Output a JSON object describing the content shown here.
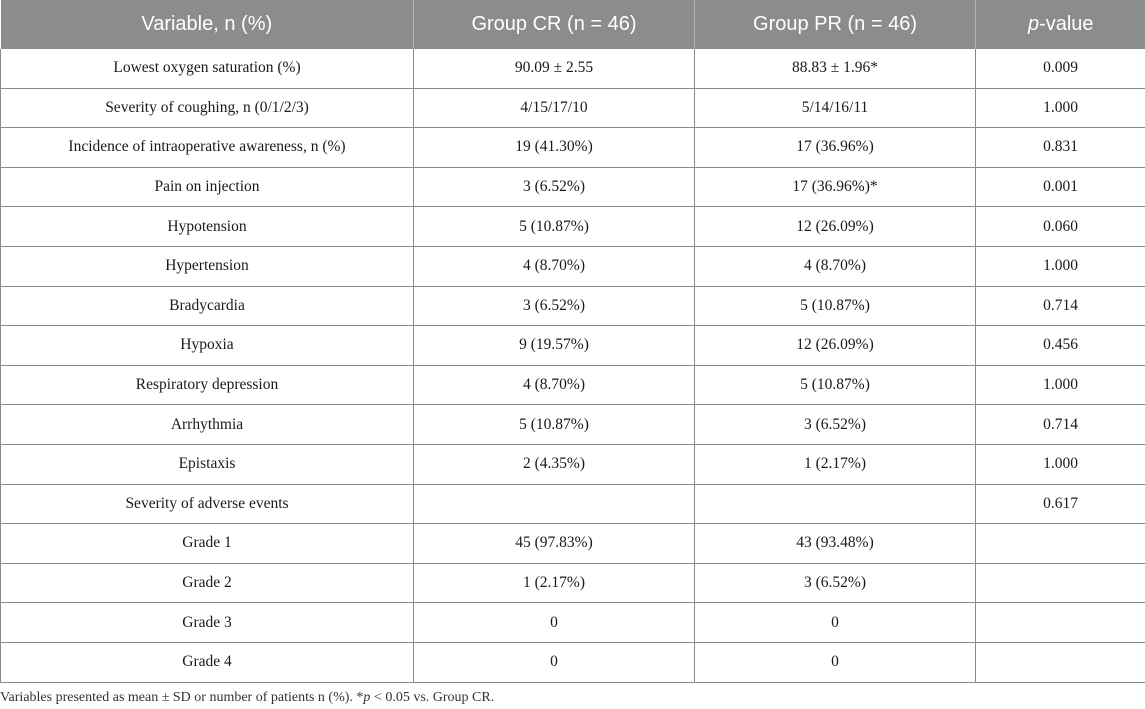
{
  "table": {
    "headers": {
      "variable": "Variable, n (%)",
      "group_cr": "Group CR (n = 46)",
      "group_pr": "Group PR (n = 46)",
      "p_value_italic": "p",
      "p_value_rest": "-value"
    },
    "rows": [
      {
        "variable": "Lowest oxygen saturation (%)",
        "cr": "90.09 ± 2.55",
        "pr": "88.83 ± 1.96*",
        "p": "0.009"
      },
      {
        "variable": "Severity of coughing, n (0/1/2/3)",
        "cr": "4/15/17/10",
        "pr": "5/14/16/11",
        "p": "1.000"
      },
      {
        "variable": "Incidence of intraoperative awareness, n (%)",
        "cr": "19 (41.30%)",
        "pr": "17 (36.96%)",
        "p": "0.831"
      },
      {
        "variable": "Pain on injection",
        "cr": "3 (6.52%)",
        "pr": "17 (36.96%)*",
        "p": "0.001"
      },
      {
        "variable": "Hypotension",
        "cr": "5 (10.87%)",
        "pr": "12 (26.09%)",
        "p": "0.060"
      },
      {
        "variable": "Hypertension",
        "cr": "4 (8.70%)",
        "pr": "4 (8.70%)",
        "p": "1.000"
      },
      {
        "variable": "Bradycardia",
        "cr": "3 (6.52%)",
        "pr": "5 (10.87%)",
        "p": "0.714"
      },
      {
        "variable": "Hypoxia",
        "cr": "9 (19.57%)",
        "pr": "12 (26.09%)",
        "p": "0.456"
      },
      {
        "variable": "Respiratory depression",
        "cr": "4 (8.70%)",
        "pr": "5 (10.87%)",
        "p": "1.000"
      },
      {
        "variable": "Arrhythmia",
        "cr": "5 (10.87%)",
        "pr": "3 (6.52%)",
        "p": "0.714"
      },
      {
        "variable": "Epistaxis",
        "cr": "2 (4.35%)",
        "pr": "1 (2.17%)",
        "p": "1.000"
      },
      {
        "variable": "Severity of adverse events",
        "cr": "",
        "pr": "",
        "p": "0.617"
      },
      {
        "variable": "Grade 1",
        "cr": "45 (97.83%)",
        "pr": "43 (93.48%)",
        "p": ""
      },
      {
        "variable": "Grade 2",
        "cr": "1 (2.17%)",
        "pr": "3 (6.52%)",
        "p": ""
      },
      {
        "variable": "Grade 3",
        "cr": "0",
        "pr": "0",
        "p": ""
      },
      {
        "variable": "Grade 4",
        "cr": "0",
        "pr": "0",
        "p": ""
      }
    ]
  },
  "footnote": {
    "part1": "Variables presented as mean ± SD or number of patients n (%). *",
    "italic": "p",
    "part2": " < 0.05 vs. Group CR."
  }
}
